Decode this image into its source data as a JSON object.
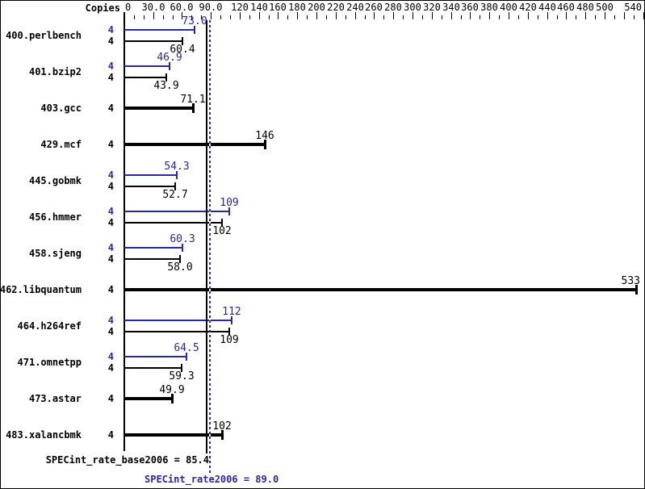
{
  "header": {
    "copies_label": "Copies"
  },
  "colors": {
    "peak": "#2727ac",
    "base": "#000000",
    "background": "#ffffff",
    "text": "#000000"
  },
  "axis": {
    "tick_labels": [
      {
        "v": 0,
        "t": "0"
      },
      {
        "v": 30,
        "t": "30.0"
      },
      {
        "v": 60,
        "t": "60.0"
      },
      {
        "v": 90,
        "t": "90.0"
      },
      {
        "v": 120,
        "t": "120"
      },
      {
        "v": 140,
        "t": "140"
      },
      {
        "v": 160,
        "t": "160"
      },
      {
        "v": 180,
        "t": "180"
      },
      {
        "v": 200,
        "t": "200"
      },
      {
        "v": 220,
        "t": "220"
      },
      {
        "v": 240,
        "t": "240"
      },
      {
        "v": 260,
        "t": "260"
      },
      {
        "v": 280,
        "t": "280"
      },
      {
        "v": 300,
        "t": "300"
      },
      {
        "v": 320,
        "t": "320"
      },
      {
        "v": 340,
        "t": "340"
      },
      {
        "v": 360,
        "t": "360"
      },
      {
        "v": 380,
        "t": "380"
      },
      {
        "v": 400,
        "t": "400"
      },
      {
        "v": 420,
        "t": "420"
      },
      {
        "v": 440,
        "t": "440"
      },
      {
        "v": 460,
        "t": "460"
      },
      {
        "v": 480,
        "t": "480"
      },
      {
        "v": 500,
        "t": "500"
      },
      {
        "v": 540,
        "t": "540"
      }
    ]
  },
  "chart_data": {
    "type": "bar",
    "orientation": "horizontal",
    "xlim": [
      0,
      540
    ],
    "grid": false,
    "legend": "none",
    "series_names": {
      "peak": "SPECint_rate2006 (peak)",
      "base": "SPECint_rate_base2006 (base)"
    },
    "benchmarks": [
      {
        "name": "400.perlbench",
        "bars": [
          {
            "series": "peak",
            "copies": "4",
            "value": 73.0,
            "label": "73.0"
          },
          {
            "series": "base",
            "copies": "4",
            "value": 60.4,
            "label": "60.4"
          }
        ]
      },
      {
        "name": "401.bzip2",
        "bars": [
          {
            "series": "peak",
            "copies": "4",
            "value": 46.9,
            "label": "46.9"
          },
          {
            "series": "base",
            "copies": "4",
            "value": 43.9,
            "label": "43.9"
          }
        ]
      },
      {
        "name": "403.gcc",
        "bars": [
          {
            "series": "base",
            "copies": "4",
            "value": 71.1,
            "label": "71.1"
          }
        ]
      },
      {
        "name": "429.mcf",
        "bars": [
          {
            "series": "base",
            "copies": "4",
            "value": 146,
            "label": "146"
          }
        ]
      },
      {
        "name": "445.gobmk",
        "bars": [
          {
            "series": "peak",
            "copies": "4",
            "value": 54.3,
            "label": "54.3"
          },
          {
            "series": "base",
            "copies": "4",
            "value": 52.7,
            "label": "52.7"
          }
        ]
      },
      {
        "name": "456.hmmer",
        "bars": [
          {
            "series": "peak",
            "copies": "4",
            "value": 109,
            "label": "109"
          },
          {
            "series": "base",
            "copies": "4",
            "value": 102,
            "label": "102"
          }
        ]
      },
      {
        "name": "458.sjeng",
        "bars": [
          {
            "series": "peak",
            "copies": "4",
            "value": 60.3,
            "label": "60.3"
          },
          {
            "series": "base",
            "copies": "4",
            "value": 58.0,
            "label": "58.0"
          }
        ]
      },
      {
        "name": "462.libquantum",
        "bars": [
          {
            "series": "base",
            "copies": "4",
            "value": 533,
            "label": "533"
          }
        ]
      },
      {
        "name": "464.h264ref",
        "bars": [
          {
            "series": "peak",
            "copies": "4",
            "value": 112,
            "label": "112"
          },
          {
            "series": "base",
            "copies": "4",
            "value": 109,
            "label": "109"
          }
        ]
      },
      {
        "name": "471.omnetpp",
        "bars": [
          {
            "series": "peak",
            "copies": "4",
            "value": 64.5,
            "label": "64.5"
          },
          {
            "series": "base",
            "copies": "4",
            "value": 59.3,
            "label": "59.3"
          }
        ]
      },
      {
        "name": "473.astar",
        "bars": [
          {
            "series": "base",
            "copies": "4",
            "value": 49.9,
            "label": "49.9"
          }
        ]
      },
      {
        "name": "483.xalancbmk",
        "bars": [
          {
            "series": "base",
            "copies": "4",
            "value": 102,
            "label": "102"
          }
        ]
      }
    ],
    "reference_lines": [
      {
        "series": "base",
        "value": 85.4,
        "label": "SPECint_rate_base2006 = 85.4"
      },
      {
        "series": "peak",
        "value": 89.0,
        "label": "SPECint_rate2006 = 89.0"
      }
    ]
  }
}
